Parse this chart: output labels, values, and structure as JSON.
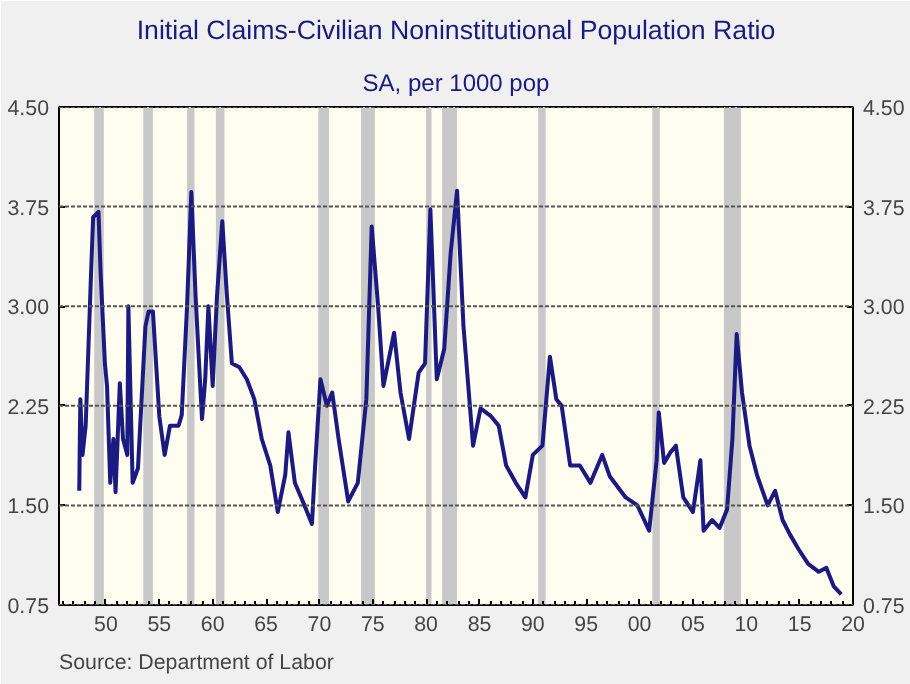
{
  "chart_data": {
    "type": "line",
    "title": "Initial Claims-Civilian Noninstitutional Population Ratio",
    "subtitle": "SA, per 1000 pop",
    "annotations": [
      "Source:  Department of Labor"
    ],
    "xlim": [
      1945.6,
      2020
    ],
    "xticks": [
      {
        "value": 1950,
        "label": "50"
      },
      {
        "value": 1955,
        "label": "55"
      },
      {
        "value": 1960,
        "label": "60"
      },
      {
        "value": 1965,
        "label": "65"
      },
      {
        "value": 1970,
        "label": "70"
      },
      {
        "value": 1975,
        "label": "75"
      },
      {
        "value": 1980,
        "label": "80"
      },
      {
        "value": 1985,
        "label": "85"
      },
      {
        "value": 1990,
        "label": "90"
      },
      {
        "value": 1995,
        "label": "95"
      },
      {
        "value": 2000,
        "label": "00"
      },
      {
        "value": 2005,
        "label": "05"
      },
      {
        "value": 2010,
        "label": "10"
      },
      {
        "value": 2015,
        "label": "15"
      },
      {
        "value": 2020,
        "label": "20"
      }
    ],
    "ylim": [
      0.75,
      4.5
    ],
    "yticks": [
      0.75,
      {
        "value": 1.5,
        "label": "1.50"
      },
      2.25,
      {
        "value": 3,
        "label": "3.00"
      },
      3.75,
      {
        "value": 4.5,
        "label": "4.50"
      }
    ],
    "y2lim": [
      0.75,
      4.5
    ],
    "y2ticks": [
      0.75,
      {
        "value": 1.5,
        "label": "1.50"
      },
      2.25,
      {
        "value": 3,
        "label": "3.00"
      },
      3.75,
      {
        "value": 4.5,
        "label": "4.50"
      }
    ],
    "grid": "y",
    "bands": [
      {
        "axis": "x",
        "from": 1948.9,
        "to": 1949.8,
        "color": "#c8c8c8"
      },
      {
        "axis": "x",
        "from": 1953.5,
        "to": 1954.4,
        "color": "#c8c8c8"
      },
      {
        "axis": "x",
        "from": 1957.6,
        "to": 1958.3,
        "color": "#c8c8c8"
      },
      {
        "axis": "x",
        "from": 1960.3,
        "to": 1961.1,
        "color": "#c8c8c8"
      },
      {
        "axis": "x",
        "from": 1969.9,
        "to": 1970.9,
        "color": "#c8c8c8"
      },
      {
        "axis": "x",
        "from": 1973.9,
        "to": 1975.2,
        "color": "#c8c8c8"
      },
      {
        "axis": "x",
        "from": 1980.0,
        "to": 1980.5,
        "color": "#c8c8c8"
      },
      {
        "axis": "x",
        "from": 1981.5,
        "to": 1982.9,
        "color": "#c8c8c8"
      },
      {
        "axis": "x",
        "from": 1990.5,
        "to": 1991.2,
        "color": "#c8c8c8"
      },
      {
        "axis": "x",
        "from": 2001.2,
        "to": 2001.9,
        "color": "#c8c8c8"
      },
      {
        "axis": "x",
        "from": 2007.9,
        "to": 2009.5,
        "color": "#c8c8c8"
      }
    ],
    "series": [
      {
        "color": "#1a1a80",
        "x": [
          1947.5,
          1947.55,
          1947.6,
          1947.8,
          1948.1,
          1948.6,
          1948.8,
          1949.3,
          1949.5,
          1949.9,
          1950.1,
          1950.4,
          1950.7,
          1950.9,
          1951.3,
          1951.6,
          1952.0,
          1952.1,
          1952.5,
          1953.0,
          1953.7,
          1954.0,
          1954.4,
          1955.0,
          1955.5,
          1956.0,
          1956.8,
          1957.1,
          1957.6,
          1958.0,
          1958.4,
          1959.0,
          1959.3,
          1959.6,
          1960.0,
          1960.4,
          1960.9,
          1961.3,
          1961.8,
          1962.5,
          1963.2,
          1963.9,
          1964.6,
          1965.4,
          1966.1,
          1966.8,
          1967.1,
          1967.7,
          1968.6,
          1969.3,
          1969.6,
          1970.1,
          1970.7,
          1971.2,
          1971.8,
          1972.7,
          1973.6,
          1974.4,
          1974.9,
          1975.5,
          1976.0,
          1977.0,
          1977.6,
          1978.4,
          1979.3,
          1979.9,
          1980.4,
          1981.0,
          1981.7,
          1982.3,
          1982.9,
          1983.5,
          1984.4,
          1985.1,
          1986.1,
          1986.8,
          1987.5,
          1988.4,
          1989.3,
          1990.0,
          1990.9,
          1991.6,
          1992.2,
          1992.7,
          1993.5,
          1994.4,
          1995.4,
          1996.5,
          1997.2,
          1998.7,
          1999.8,
          2000.9,
          2001.6,
          2001.8,
          2002.3,
          2002.9,
          2003.4,
          2004.1,
          2005.0,
          2005.7,
          2006.0,
          2006.8,
          2007.5,
          2008.2,
          2008.7,
          2009.1,
          2009.6,
          2010.3,
          2011.0,
          2012.0,
          2012.7,
          2013.4,
          2014.1,
          2014.9,
          2015.8,
          2016.8,
          2017.5,
          2018.2,
          2018.9
        ],
        "values": [
          1.61,
          1.99,
          2.3,
          1.88,
          2.1,
          3.24,
          3.67,
          3.71,
          3.25,
          2.57,
          2.4,
          1.67,
          2.0,
          1.6,
          2.42,
          2.0,
          1.88,
          3.0,
          1.67,
          1.78,
          2.85,
          2.96,
          2.96,
          2.17,
          1.88,
          2.1,
          2.1,
          2.18,
          3.0,
          3.86,
          3.07,
          2.15,
          2.45,
          3.0,
          2.4,
          3.07,
          3.64,
          3.12,
          2.57,
          2.54,
          2.45,
          2.3,
          2.0,
          1.8,
          1.45,
          1.73,
          2.05,
          1.67,
          1.5,
          1.36,
          1.8,
          2.45,
          2.25,
          2.35,
          2.0,
          1.53,
          1.67,
          2.3,
          3.6,
          3.0,
          2.4,
          2.8,
          2.35,
          2.0,
          2.5,
          2.57,
          3.73,
          2.45,
          2.68,
          3.4,
          3.87,
          2.85,
          1.95,
          2.23,
          2.17,
          2.1,
          1.8,
          1.67,
          1.56,
          1.88,
          1.95,
          2.62,
          2.3,
          2.25,
          1.8,
          1.8,
          1.67,
          1.88,
          1.72,
          1.56,
          1.5,
          1.31,
          1.84,
          2.2,
          1.82,
          1.9,
          1.95,
          1.56,
          1.45,
          1.84,
          1.31,
          1.39,
          1.33,
          1.47,
          2.0,
          2.79,
          2.35,
          1.95,
          1.73,
          1.5,
          1.61,
          1.39,
          1.28,
          1.17,
          1.06,
          1.0,
          1.03,
          0.89,
          0.83
        ]
      }
    ]
  }
}
